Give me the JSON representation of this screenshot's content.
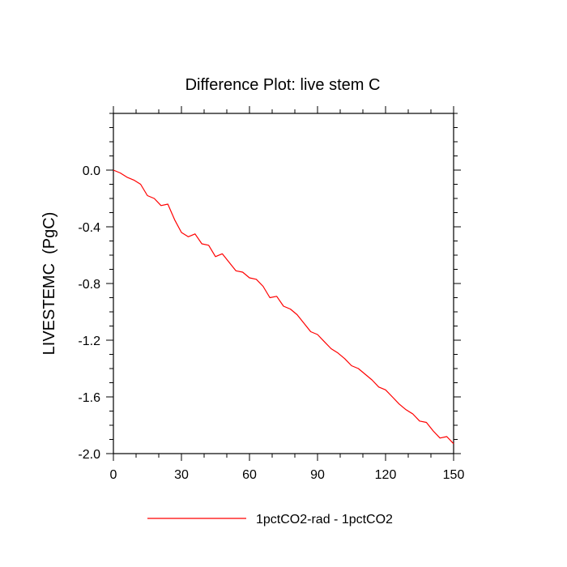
{
  "chart_data": {
    "type": "line",
    "title": "Difference Plot: live stem C",
    "xlabel": "",
    "ylabel": "LIVESTEMC  (PgC)",
    "xlim": [
      0,
      150
    ],
    "ylim": [
      -2.0,
      0.4
    ],
    "xticks": [
      0,
      30,
      60,
      90,
      120,
      150
    ],
    "xtick_labels": [
      "0",
      "30",
      "60",
      "90",
      "120",
      "150"
    ],
    "yticks": [
      0.0,
      -0.4,
      -0.8,
      -1.2,
      -1.6,
      -2.0
    ],
    "ytick_labels": [
      "0.0",
      "-0.4",
      "-0.8",
      "-1.2",
      "-1.6",
      "-2.0"
    ],
    "grid": false,
    "legend_position": "bottom",
    "series": [
      {
        "name": "1pctCO2-rad - 1pctCO2",
        "color": "#ff0000",
        "x": [
          0,
          3,
          6,
          9,
          12,
          15,
          18,
          21,
          24,
          27,
          30,
          33,
          36,
          39,
          42,
          45,
          48,
          51,
          54,
          57,
          60,
          63,
          66,
          69,
          72,
          75,
          78,
          81,
          84,
          87,
          90,
          93,
          96,
          99,
          102,
          105,
          108,
          111,
          114,
          117,
          120,
          123,
          126,
          129,
          132,
          135,
          138,
          141,
          144,
          147,
          150
        ],
        "y": [
          0.0,
          -0.02,
          -0.05,
          -0.07,
          -0.1,
          -0.18,
          -0.2,
          -0.25,
          -0.24,
          -0.35,
          -0.44,
          -0.47,
          -0.45,
          -0.52,
          -0.53,
          -0.61,
          -0.59,
          -0.65,
          -0.71,
          -0.72,
          -0.76,
          -0.77,
          -0.82,
          -0.9,
          -0.89,
          -0.96,
          -0.98,
          -1.02,
          -1.08,
          -1.14,
          -1.16,
          -1.21,
          -1.26,
          -1.29,
          -1.33,
          -1.38,
          -1.4,
          -1.44,
          -1.48,
          -1.53,
          -1.55,
          -1.6,
          -1.65,
          -1.69,
          -1.72,
          -1.77,
          -1.78,
          -1.84,
          -1.89,
          -1.88,
          -1.93
        ]
      }
    ]
  }
}
